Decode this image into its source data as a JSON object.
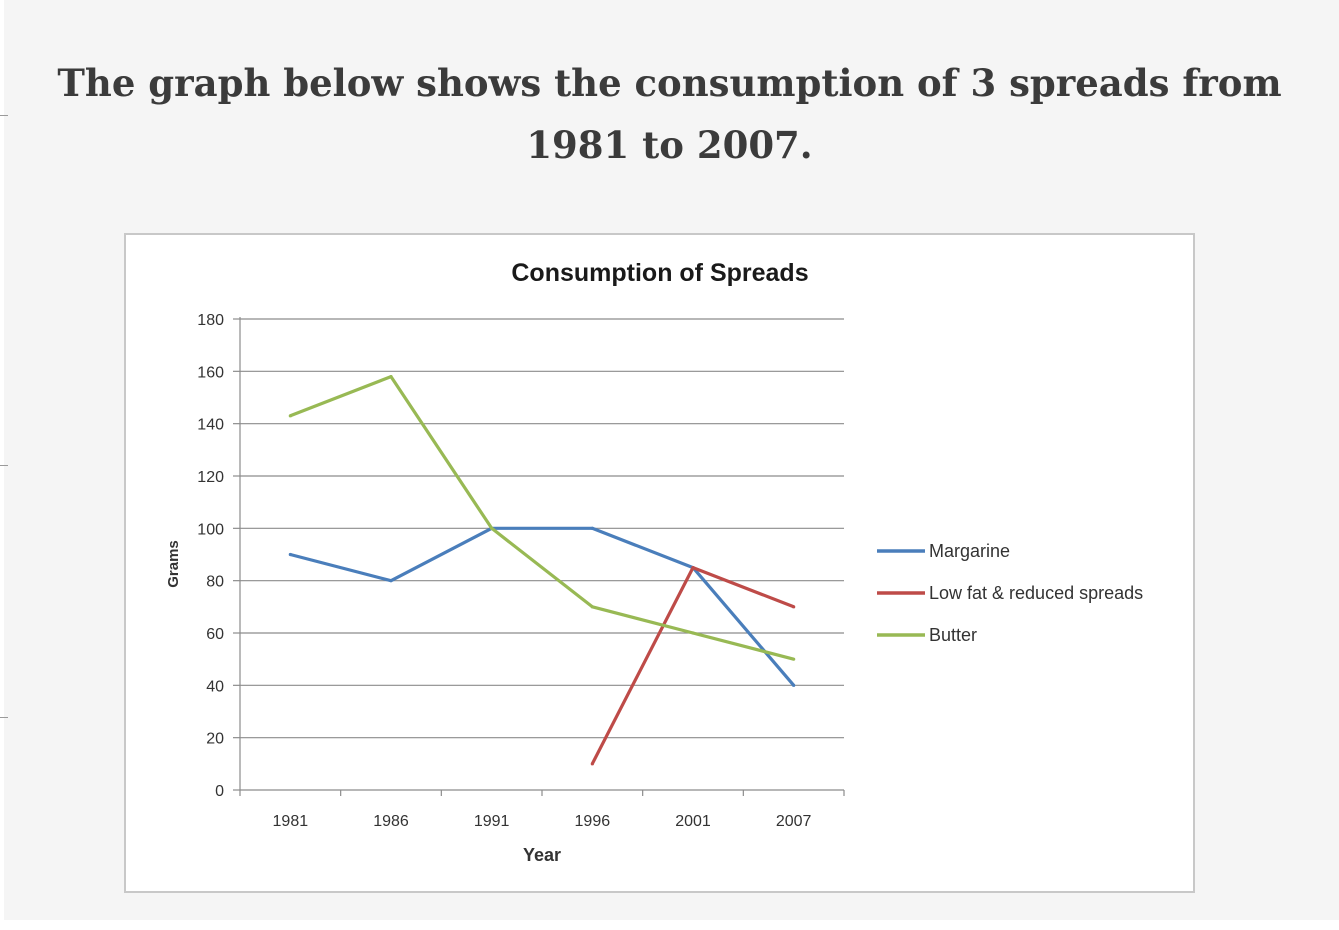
{
  "page": {
    "heading": "The graph below shows the consumption of 3 spreads from 1981 to 2007."
  },
  "chart_data": {
    "type": "line",
    "title": "Consumption of Spreads",
    "xlabel": "Year",
    "ylabel": "Grams",
    "categories": [
      "1981",
      "1986",
      "1991",
      "1996",
      "2001",
      "2007"
    ],
    "ylim": [
      0,
      180
    ],
    "yticks": [
      0,
      20,
      40,
      60,
      80,
      100,
      120,
      140,
      160,
      180
    ],
    "grid": true,
    "legend_position": "right",
    "series": [
      {
        "name": "Margarine",
        "color": "#4a7ebb",
        "values": [
          90,
          80,
          100,
          100,
          85,
          40
        ]
      },
      {
        "name": "Low fat & reduced spreads",
        "color": "#be4b48",
        "values": [
          null,
          null,
          null,
          10,
          85,
          70
        ]
      },
      {
        "name": "Butter",
        "color": "#98b954",
        "values": [
          143,
          158,
          100,
          70,
          60,
          50
        ]
      }
    ]
  }
}
